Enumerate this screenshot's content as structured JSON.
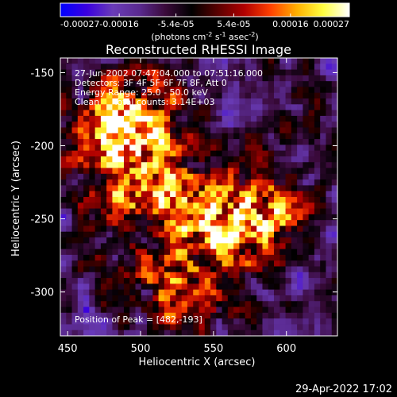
{
  "chart_data": {
    "type": "heatmap",
    "title": "Reconstructed RHESSI Image",
    "xlabel": "Heliocentric X (arcsec)",
    "ylabel": "Heliocentric Y (arcsec)",
    "xlim": [
      445,
      635
    ],
    "ylim": [
      -330,
      -140
    ],
    "x_ticks": [
      450,
      500,
      550,
      600
    ],
    "y_ticks": [
      -150,
      -200,
      -250,
      -300
    ],
    "colorbar": {
      "unit_prefix": "(photons cm",
      "unit_exp1": "-2",
      "unit_mid": " s",
      "unit_exp2": "-1",
      "unit_mid2": " asec",
      "unit_exp3": "-2",
      "unit_suffix": ")",
      "min": -0.00027,
      "max": 0.00027,
      "tick_values": [
        -0.00027,
        -0.00016,
        -5.4e-05,
        5.4e-05,
        0.00016,
        0.00027
      ],
      "tick_labels": [
        "-0.00027",
        "-0.00016",
        "-5.4e-05",
        "5.4e-05",
        "0.00016",
        "0.00027"
      ],
      "colors": [
        "#0000ff",
        "#3a00e0",
        "#6a3cb8",
        "#5a2a90",
        "#3a0a3a",
        "#000000",
        "#5a0000",
        "#b00000",
        "#ff4000",
        "#ffb000",
        "#ffff40",
        "#ffffff"
      ]
    },
    "annotations": {
      "line1": "27-Jun-2002 07:47:04.000 to 07:51:16.000",
      "line2": "Detectors: 3F 4F 5F 6F 7F 8F, Att 0",
      "line3": "Energy Range: 25.0 - 50.0 keV",
      "line4": "Clean     Total counts: 3.14E+03",
      "peak": "Position of Peak = [482,-193]"
    },
    "sources": [
      {
        "x": 482,
        "y": -193,
        "peak": 0.00027
      },
      {
        "x": 560,
        "y": -250,
        "peak": 0.00024
      },
      {
        "x": 500,
        "y": -170,
        "peak": 0.0002
      },
      {
        "x": 520,
        "y": -230,
        "peak": 0.00022
      },
      {
        "x": 590,
        "y": -250,
        "peak": 0.0002
      },
      {
        "x": 540,
        "y": -300,
        "peak": 0.00018
      },
      {
        "x": 480,
        "y": -240,
        "peak": 0.00012
      },
      {
        "x": 505,
        "y": -290,
        "peak": 0.00015
      },
      {
        "x": 620,
        "y": -180,
        "peak": 8e-05
      }
    ]
  },
  "footer": {
    "date": "29-Apr-2022 17:02"
  }
}
